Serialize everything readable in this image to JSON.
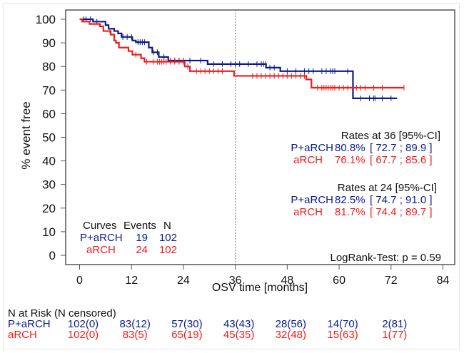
{
  "chart_data": {
    "type": "line",
    "subtype": "kaplan-meier",
    "xlabel": "OSV time [months]",
    "ylabel": "% event free",
    "xlim": [
      0,
      84
    ],
    "ylim": [
      0,
      100
    ],
    "x_ticks": [
      0,
      12,
      24,
      36,
      48,
      60,
      72,
      84
    ],
    "y_ticks": [
      0,
      10,
      20,
      30,
      40,
      50,
      60,
      70,
      80,
      90,
      100
    ],
    "reference_line_x": 36,
    "grid": false,
    "series": [
      {
        "name": "P+aRCH",
        "color": "#0a1a8c",
        "steps": [
          [
            0,
            100
          ],
          [
            3.1,
            99
          ],
          [
            6,
            97.5
          ],
          [
            6.7,
            96
          ],
          [
            8,
            95
          ],
          [
            8.9,
            94
          ],
          [
            9.7,
            92.5
          ],
          [
            12.2,
            91
          ],
          [
            13,
            90.3
          ],
          [
            16,
            88
          ],
          [
            16.8,
            86
          ],
          [
            18.3,
            84
          ],
          [
            20.5,
            82.5
          ],
          [
            29.6,
            81
          ],
          [
            43.1,
            79.5
          ],
          [
            46.4,
            78
          ],
          [
            63.2,
            66.5
          ],
          [
            73.4,
            66.5
          ]
        ],
        "censor_times": [
          1,
          1.5,
          2.5,
          4,
          10,
          11,
          12,
          13.5,
          14,
          14.5,
          15,
          17,
          18,
          19.5,
          21,
          22,
          23,
          24,
          25.5,
          28,
          31,
          33,
          35,
          36,
          37,
          39,
          41,
          42,
          42.5,
          43,
          44,
          45,
          48,
          50,
          52,
          53,
          54,
          56,
          57,
          58,
          58.5,
          59,
          62,
          65,
          67,
          68,
          68.3,
          70,
          72
        ]
      },
      {
        "name": "aRCH",
        "color": "#ee1c1c",
        "steps": [
          [
            0,
            100
          ],
          [
            0.6,
            99
          ],
          [
            2.3,
            98
          ],
          [
            4.7,
            97
          ],
          [
            5.5,
            95
          ],
          [
            7.2,
            93.5
          ],
          [
            8,
            91
          ],
          [
            8.4,
            90
          ],
          [
            9.1,
            88
          ],
          [
            11.3,
            86.5
          ],
          [
            12.2,
            85
          ],
          [
            14.2,
            83.5
          ],
          [
            15,
            82
          ],
          [
            24.3,
            80
          ],
          [
            25.5,
            78
          ],
          [
            35.7,
            76
          ],
          [
            52.4,
            74.5
          ],
          [
            53.6,
            71
          ],
          [
            75,
            71
          ]
        ],
        "censor_times": [
          7,
          13,
          15.5,
          17,
          18,
          18.5,
          19,
          19.5,
          20,
          21,
          22,
          23,
          24,
          25,
          27,
          28,
          29,
          30,
          31,
          32,
          33,
          40,
          41,
          42,
          43,
          44,
          45,
          46,
          47,
          48,
          49,
          50,
          51,
          52,
          55,
          56,
          56.5,
          57,
          57.5,
          58,
          58.5,
          59,
          60,
          61,
          62,
          64,
          65,
          66,
          68,
          70,
          75
        ]
      }
    ]
  },
  "legend": {
    "header": [
      "Curves",
      "Events",
      "N"
    ],
    "rows": [
      {
        "curve": "P+aRCH",
        "events": "19",
        "n": "102"
      },
      {
        "curve": "aRCH",
        "events": "24",
        "n": "102"
      }
    ]
  },
  "rates": [
    {
      "title": "Rates at 36  [95%-CI]",
      "rows": [
        {
          "curve": "P+aRCH",
          "rate": "80.8%",
          "ci": "[ 72.7 ; 89.9 ]"
        },
        {
          "curve": "aRCH",
          "rate": "76.1%",
          "ci": "[ 67.7 ; 85.6 ]"
        }
      ]
    },
    {
      "title": "Rates at 24  [95%-CI]",
      "rows": [
        {
          "curve": "P+aRCH",
          "rate": "82.5%",
          "ci": "[ 74.7 ; 91.0 ]"
        },
        {
          "curve": "aRCH",
          "rate": "81.7%",
          "ci": "[ 74.4 ; 89.7 ]"
        }
      ]
    }
  ],
  "logrank": "LogRank-Test: p = 0.59",
  "at_risk": {
    "title": "N at Risk (N censored)",
    "rows": [
      {
        "curve": "P+aRCH",
        "values": [
          "102(0)",
          "83(12)",
          "57(30)",
          "43(43)",
          "28(56)",
          "14(70)",
          "2(81)"
        ]
      },
      {
        "curve": "aRCH",
        "values": [
          "102(0)",
          "83(5)",
          "65(19)",
          "45(35)",
          "32(48)",
          "15(63)",
          "1(77)"
        ]
      }
    ]
  }
}
